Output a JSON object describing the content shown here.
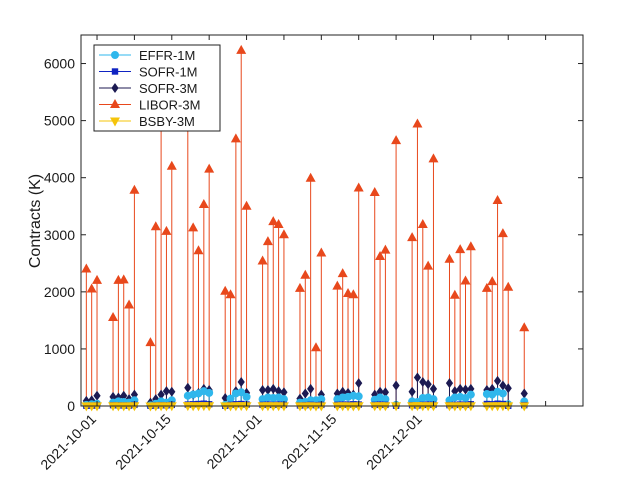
{
  "chart_data": {
    "type": "scatter",
    "title": "",
    "xlabel": "",
    "ylabel": "Contracts (K)",
    "x_tick_labels": [
      "2021-10-01",
      "2021-10-15",
      "2021-11-01",
      "2021-11-15",
      "2021-12-01"
    ],
    "y_ticks": [
      0,
      1000,
      2000,
      3000,
      4000,
      5000,
      6000
    ],
    "ylim": [
      0,
      6500
    ],
    "xlim": [
      "2021-09-28",
      "2021-12-31"
    ],
    "grid": false,
    "legend_position": "top-left",
    "stems": true,
    "dates": [
      "2021-09-29",
      "2021-09-30",
      "2021-10-01",
      "2021-10-04",
      "2021-10-05",
      "2021-10-06",
      "2021-10-07",
      "2021-10-08",
      "2021-10-11",
      "2021-10-12",
      "2021-10-13",
      "2021-10-14",
      "2021-10-15",
      "2021-10-18",
      "2021-10-19",
      "2021-10-20",
      "2021-10-21",
      "2021-10-22",
      "2021-10-25",
      "2021-10-26",
      "2021-10-27",
      "2021-10-28",
      "2021-10-29",
      "2021-11-01",
      "2021-11-02",
      "2021-11-03",
      "2021-11-04",
      "2021-11-05",
      "2021-11-08",
      "2021-11-09",
      "2021-11-10",
      "2021-11-11",
      "2021-11-12",
      "2021-11-15",
      "2021-11-16",
      "2021-11-17",
      "2021-11-18",
      "2021-11-19",
      "2021-11-22",
      "2021-11-23",
      "2021-11-24",
      "2021-11-26",
      "2021-11-29",
      "2021-11-30",
      "2021-12-01",
      "2021-12-02",
      "2021-12-03",
      "2021-12-06",
      "2021-12-07",
      "2021-12-08",
      "2021-12-09",
      "2021-12-10",
      "2021-12-13",
      "2021-12-14",
      "2021-12-15",
      "2021-12-16",
      "2021-12-17",
      "2021-12-20"
    ],
    "series": [
      {
        "name": "EFFR-1M",
        "color": "#2fb7ec",
        "marker": "circle",
        "values": [
          20,
          30,
          40,
          60,
          80,
          70,
          60,
          100,
          10,
          40,
          80,
          60,
          100,
          180,
          200,
          220,
          260,
          230,
          20,
          130,
          220,
          240,
          160,
          120,
          150,
          140,
          150,
          120,
          60,
          70,
          100,
          100,
          120,
          120,
          150,
          160,
          180,
          170,
          110,
          150,
          120,
          20,
          80,
          70,
          140,
          150,
          120,
          100,
          150,
          160,
          140,
          200,
          210,
          200,
          250,
          220,
          30,
          80
        ]
      },
      {
        "name": "SOFR-1M",
        "color": "#0f23c2",
        "marker": "square",
        "values": [
          5,
          8,
          10,
          15,
          12,
          10,
          8,
          20,
          5,
          10,
          15,
          12,
          20,
          25,
          30,
          35,
          40,
          30,
          5,
          20,
          30,
          35,
          25,
          20,
          25,
          20,
          25,
          20,
          10,
          15,
          20,
          15,
          20,
          20,
          25,
          25,
          30,
          25,
          20,
          25,
          20,
          5,
          15,
          10,
          20,
          25,
          20,
          15,
          20,
          25,
          20,
          30,
          35,
          30,
          40,
          35,
          5,
          15
        ]
      },
      {
        "name": "SOFR-3M",
        "color": "#1c1a52",
        "marker": "diamond",
        "values": [
          90,
          100,
          180,
          160,
          150,
          180,
          120,
          200,
          60,
          120,
          200,
          260,
          250,
          320,
          200,
          230,
          300,
          280,
          140,
          120,
          260,
          420,
          230,
          280,
          280,
          300,
          260,
          240,
          130,
          220,
          300,
          30,
          200,
          220,
          250,
          230,
          200,
          400,
          200,
          250,
          240,
          360,
          250,
          500,
          420,
          380,
          300,
          400,
          260,
          300,
          290,
          300,
          280,
          300,
          440,
          360,
          310,
          220
        ]
      },
      {
        "name": "LIBOR-3M",
        "color": "#e8481c",
        "marker": "triangle-up",
        "values": [
          2400,
          2050,
          2200,
          1550,
          2200,
          2210,
          1770,
          3780,
          1110,
          3140,
          5010,
          3060,
          4200,
          5350,
          3120,
          2720,
          3530,
          4150,
          2010,
          1950,
          4680,
          6230,
          3500,
          2540,
          2880,
          3230,
          3180,
          3000,
          2060,
          2290,
          3990,
          1020,
          2680,
          2100,
          2320,
          1970,
          1950,
          3820,
          3740,
          2620,
          2730,
          4650,
          2950,
          4940,
          3180,
          2450,
          4330,
          2570,
          1940,
          2740,
          2190,
          2790,
          2060,
          2180,
          3600,
          3020,
          2080,
          1370
        ]
      },
      {
        "name": "BSBY-3M",
        "color": "#f5c40a",
        "marker": "triangle-down",
        "values": [
          2,
          2,
          3,
          4,
          3,
          3,
          2,
          5,
          1,
          3,
          4,
          3,
          5,
          6,
          5,
          5,
          6,
          5,
          2,
          3,
          5,
          6,
          4,
          4,
          4,
          4,
          4,
          3,
          2,
          3,
          4,
          1,
          3,
          3,
          4,
          3,
          3,
          5,
          4,
          4,
          4,
          5,
          4,
          6,
          5,
          4,
          5,
          4,
          3,
          4,
          3,
          4,
          3,
          4,
          5,
          5,
          3,
          2
        ]
      }
    ]
  }
}
